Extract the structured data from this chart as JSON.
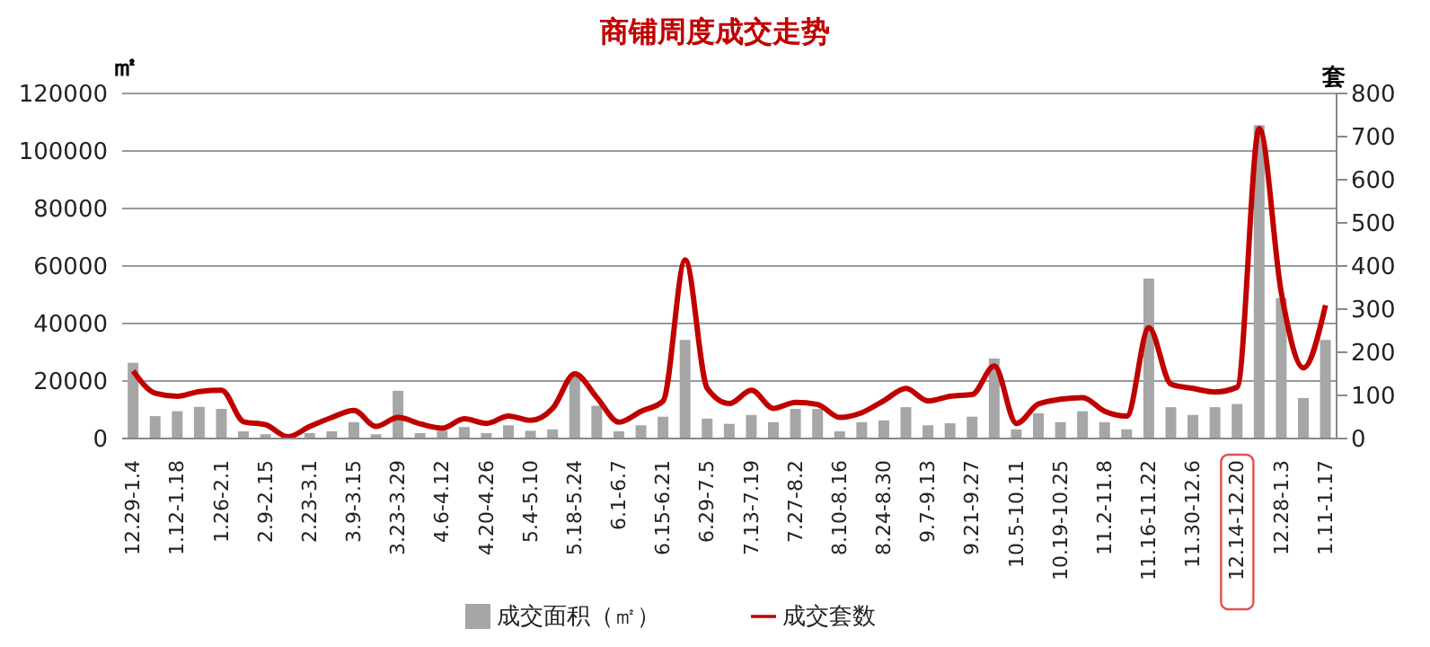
{
  "chart_data": {
    "type": "bar",
    "title": "商铺周度成交走势",
    "ylabel": "㎡",
    "y2label": "套",
    "categories": [
      "12.29-1.4",
      null,
      "1.12-1.18",
      null,
      "1.26-2.1",
      null,
      "2.9-2.15",
      null,
      "2.23-3.1",
      null,
      "3.9-3.15",
      null,
      "3.23-3.29",
      null,
      "4.6-4.12",
      null,
      "4.20-4.26",
      null,
      "5.4-5.10",
      null,
      "5.18-5.24",
      null,
      "6.1-6.7",
      null,
      "6.15-6.21",
      null,
      "6.29-7.5",
      null,
      "7.13-7.19",
      null,
      "7.27-8.2",
      null,
      "8.10-8.16",
      null,
      "8.24-8.30",
      null,
      "9.7-9.13",
      null,
      "9.21-9.27",
      null,
      "10.5-10.11",
      null,
      "10.19-10.25",
      null,
      "11.2-11.8",
      null,
      "11.16-11.22",
      null,
      "11.30-12.6",
      null,
      "12.14-12.20",
      null,
      "12.28-1.3",
      null,
      "1.11-1.17"
    ],
    "series": [
      {
        "name": "成交面积（㎡）",
        "color": "#a6a6a6",
        "values": [
          26300,
          7800,
          9500,
          11000,
          10300,
          2500,
          1500,
          0,
          1900,
          2500,
          5700,
          1500,
          16600,
          1900,
          2700,
          4000,
          1900,
          4600,
          2700,
          3200,
          22500,
          11400,
          2500,
          4600,
          7600,
          34300,
          6900,
          5100,
          8200,
          5700,
          10300,
          10300,
          2500,
          5700,
          6300,
          10900,
          4600,
          5300,
          7600,
          27800,
          3200,
          8800,
          5700,
          9500,
          5700,
          3200,
          55600,
          10900,
          8200,
          10900,
          12000,
          109000,
          48800,
          14100,
          34300
        ]
      },
      {
        "name": "成交套数",
        "type": "line",
        "axis": "y2",
        "color": "#c00000",
        "values": [
          157,
          105,
          98,
          109,
          112,
          39,
          32,
          4,
          28,
          49,
          65,
          28,
          49,
          34,
          24,
          46,
          35,
          52,
          42,
          70,
          150,
          95,
          38,
          63,
          87,
          414,
          116,
          81,
          112,
          70,
          84,
          79,
          49,
          60,
          88,
          116,
          87,
          98,
          102,
          168,
          35,
          80,
          91,
          95,
          63,
          52,
          257,
          126,
          116,
          108,
          119,
          719,
          337,
          164,
          309
        ]
      }
    ],
    "ylim": [
      0,
      120000
    ],
    "yticks": [
      0,
      20000,
      40000,
      60000,
      80000,
      100000,
      120000
    ],
    "y2lim": [
      0,
      800
    ],
    "y2ticks": [
      0,
      100,
      200,
      300,
      400,
      500,
      600,
      700,
      800
    ],
    "grid": "y",
    "legend": "bottom"
  }
}
